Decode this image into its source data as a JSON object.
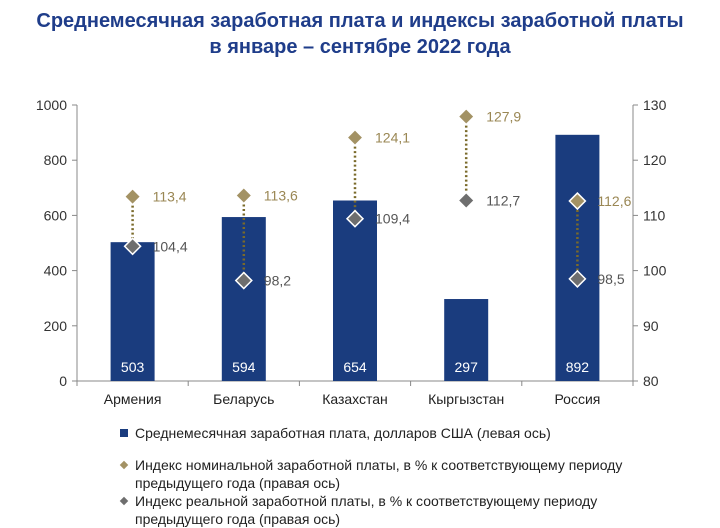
{
  "title_line1": "Среднемесячная заработная плата и индексы заработной платы",
  "title_line2": "в январе – сентябре 2022 года",
  "chart_data": {
    "type": "bar",
    "categories": [
      "Армения",
      "Беларусь",
      "Казахстан",
      "Кыргызстан",
      "Россия"
    ],
    "series": [
      {
        "name": "Среднемесячная заработная плата, долларов США (левая ось)",
        "axis": "left",
        "kind": "bar",
        "values": [
          503,
          594,
          654,
          297,
          892
        ]
      },
      {
        "name": "Индекс номинальной заработной платы, в % к соответствующему периоду предыдущего года (правая ось)",
        "axis": "right",
        "kind": "marker",
        "values": [
          113.4,
          113.6,
          124.1,
          127.9,
          112.6
        ]
      },
      {
        "name": "Индекс реальной заработной платы, в % к соответствующему периоду предыдущего года (правая ось)",
        "axis": "right",
        "kind": "marker",
        "values": [
          104.4,
          98.2,
          109.4,
          112.7,
          98.5
        ]
      }
    ],
    "bar_labels": [
      "503",
      "594",
      "654",
      "297",
      "892"
    ],
    "nominal_labels": [
      "113,4",
      "113,6",
      "124,1",
      "127,9",
      "112,6"
    ],
    "real_labels": [
      "104,4",
      "98,2",
      "109,4",
      "112,7",
      "98,5"
    ],
    "left_axis": {
      "ylim": [
        0,
        1000
      ],
      "ticks": [
        0,
        200,
        400,
        600,
        800,
        1000
      ],
      "tick_labels": [
        "0",
        "200",
        "400",
        "600",
        "800",
        "1000"
      ]
    },
    "right_axis": {
      "ylim": [
        80,
        130
      ],
      "ticks": [
        80,
        90,
        100,
        110,
        120,
        130
      ],
      "tick_labels": [
        "80",
        "90",
        "100",
        "110",
        "120",
        "130"
      ]
    },
    "colors": {
      "bar": "#1a3c7e",
      "nominal": "#a39264",
      "real": "#6e6e6e",
      "connector": "#7a6a2a",
      "title": "#1f3d8a"
    }
  },
  "legend": {
    "bar_label": "Среднемесячная заработная плата, долларов США (левая ось)",
    "nominal_label": "Индекс номинальной заработной платы, в % к соответствующему периоду предыдущего года (правая ось)",
    "real_label": "Индекс реальной заработной платы, в % к соответствующему периоду предыдущего года (правая ось)"
  }
}
